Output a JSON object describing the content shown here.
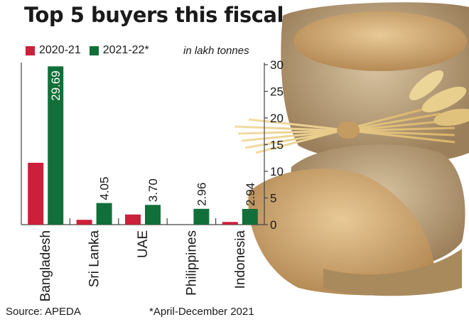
{
  "colors": {
    "series_2020_21": "#cc1f3a",
    "series_2021_22": "#11703a",
    "axis": "#444444",
    "text": "#1a1a1a"
  },
  "legend": {
    "item1": "2020-21",
    "item2": "2021-22*"
  },
  "unit_note": "in lakh tonnes",
  "footer": {
    "source": "Source: APEDA",
    "footnote": "*April-December 2021"
  },
  "illustration": {
    "icon": "wheat-grain-sacks-photo"
  },
  "chart_data": {
    "type": "bar",
    "title": "Top 5 buyers this fiscal",
    "categories": [
      "Bangladesh",
      "Sri Lanka",
      "UAE",
      "Philippines",
      "Indonesia"
    ],
    "series": [
      {
        "name": "2020-21",
        "values": [
          11.6,
          0.9,
          1.9,
          0,
          0.5
        ]
      },
      {
        "name": "2021-22*",
        "values": [
          29.69,
          4.05,
          3.7,
          2.96,
          2.94
        ],
        "labels": [
          "29.69",
          "4.05",
          "3.70",
          "2.96",
          "2.94"
        ]
      }
    ],
    "ylim": [
      0,
      30
    ],
    "yticks": [
      "0",
      "5",
      "10",
      "15",
      "20",
      "25",
      "30"
    ],
    "y_axis_side": "right",
    "legend_position": "top-left",
    "grid": false
  }
}
